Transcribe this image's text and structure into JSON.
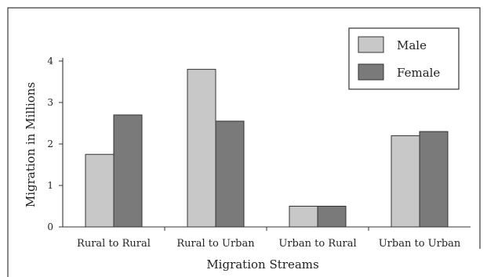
{
  "chart_data": {
    "type": "bar",
    "categories": [
      "Rural to Rural",
      "Rural to Urban",
      "Urban to Rural",
      "Urban to Urban"
    ],
    "series": [
      {
        "name": "Male",
        "values": [
          1.75,
          3.8,
          0.5,
          2.2
        ],
        "color": "#c8c8c8"
      },
      {
        "name": "Female",
        "values": [
          2.7,
          2.55,
          0.5,
          2.3
        ],
        "color": "#7a7a7a"
      }
    ],
    "xlabel": "Migration Streams",
    "ylabel": "Migration in Millions",
    "ylim": [
      0,
      4
    ],
    "yticks": [
      0,
      1,
      2,
      3,
      4
    ],
    "grid": false,
    "legend_position": "top-right"
  }
}
